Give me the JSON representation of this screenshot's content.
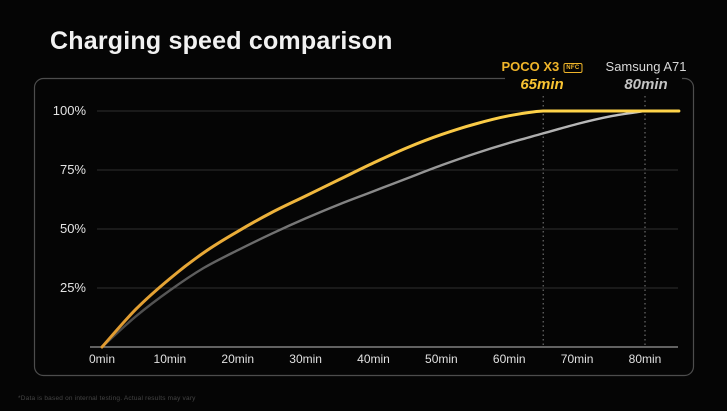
{
  "title": "Charging speed comparison",
  "footnote": "*Data is based on internal testing. Actual results may vary",
  "colors": {
    "background": "#050505",
    "title": "#f2f2f2",
    "poco_label": "#f0b52a",
    "poco_time": "#f8c332",
    "poco_line_start": "#e09a30",
    "poco_line_end": "#ffd44a",
    "samsung_label": "#d8d8d8",
    "samsung_time": "#c2c2c2",
    "samsung_line_start": "#454545",
    "samsung_line_end": "#c6c6c6",
    "grid": "#2f2f2f",
    "axis": "#9a9a9a",
    "dashed": "#7f7f7f",
    "frame": "#4d4d4d",
    "tick_text": "#e0e0e0",
    "footnote_text": "#454545"
  },
  "chart_data": {
    "type": "line",
    "title": "Charging speed comparison",
    "xlabel": "",
    "ylabel": "",
    "xlim_minutes": [
      0,
      85
    ],
    "ylim_percent": [
      0,
      100
    ],
    "grid": "horizontal",
    "legend_position": "top-right-above-plot",
    "x_ticks": [
      {
        "t": 0,
        "label": "0min"
      },
      {
        "t": 10,
        "label": "10min"
      },
      {
        "t": 20,
        "label": "20min"
      },
      {
        "t": 30,
        "label": "30min"
      },
      {
        "t": 40,
        "label": "40min"
      },
      {
        "t": 50,
        "label": "50min"
      },
      {
        "t": 60,
        "label": "60min"
      },
      {
        "t": 70,
        "label": "70min"
      },
      {
        "t": 80,
        "label": "80min"
      }
    ],
    "y_ticks": [
      {
        "p": 25,
        "label": "25%"
      },
      {
        "p": 50,
        "label": "50%"
      },
      {
        "p": 75,
        "label": "75%"
      },
      {
        "p": 100,
        "label": "100%"
      }
    ],
    "series": [
      {
        "name": "POCO X3",
        "badge": "NFC",
        "full_charge_minutes": 65,
        "points_min_percent": [
          [
            0,
            0
          ],
          [
            5,
            16
          ],
          [
            10,
            29
          ],
          [
            15,
            40
          ],
          [
            20,
            49
          ],
          [
            25,
            57
          ],
          [
            30,
            64
          ],
          [
            35,
            71
          ],
          [
            40,
            78
          ],
          [
            45,
            84.5
          ],
          [
            50,
            90
          ],
          [
            55,
            94.5
          ],
          [
            60,
            98
          ],
          [
            65,
            100
          ],
          [
            72,
            100
          ],
          [
            85,
            100
          ]
        ]
      },
      {
        "name": "Samsung A71",
        "badge": "",
        "full_charge_minutes": 80,
        "points_min_percent": [
          [
            0,
            0
          ],
          [
            5,
            13
          ],
          [
            10,
            24
          ],
          [
            15,
            33.5
          ],
          [
            20,
            41
          ],
          [
            25,
            48
          ],
          [
            30,
            54.5
          ],
          [
            35,
            60.5
          ],
          [
            40,
            66
          ],
          [
            45,
            71.5
          ],
          [
            50,
            77
          ],
          [
            55,
            82
          ],
          [
            60,
            86.5
          ],
          [
            65,
            90.5
          ],
          [
            70,
            94.5
          ],
          [
            75,
            97.8
          ],
          [
            80,
            100
          ]
        ]
      }
    ],
    "annotations": [
      {
        "series": "POCO X3",
        "time_label": "65min",
        "t": 65,
        "style": "dashed-vertical"
      },
      {
        "series": "Samsung A71",
        "time_label": "80min",
        "t": 80,
        "style": "dashed-vertical"
      }
    ]
  }
}
